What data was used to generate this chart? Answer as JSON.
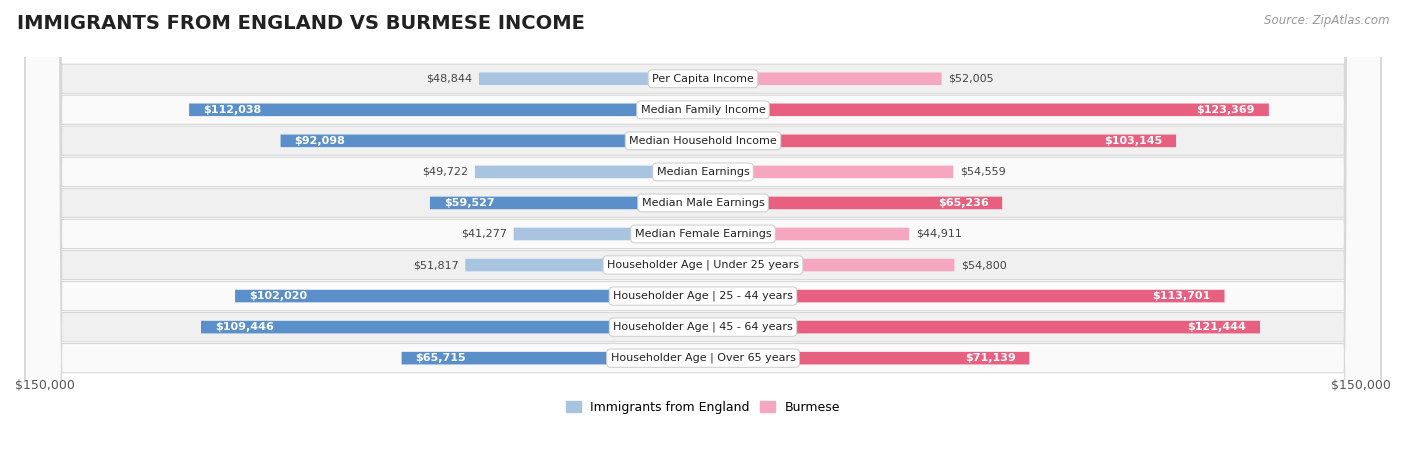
{
  "title": "Immigrants from England vs Burmese Income",
  "source": "Source: ZipAtlas.com",
  "categories": [
    "Per Capita Income",
    "Median Family Income",
    "Median Household Income",
    "Median Earnings",
    "Median Male Earnings",
    "Median Female Earnings",
    "Householder Age | Under 25 years",
    "Householder Age | 25 - 44 years",
    "Householder Age | 45 - 64 years",
    "Householder Age | Over 65 years"
  ],
  "england_values": [
    48844,
    112038,
    92098,
    49722,
    59527,
    41277,
    51817,
    102020,
    109446,
    65715
  ],
  "burmese_values": [
    52005,
    123369,
    103145,
    54559,
    65236,
    44911,
    54800,
    113701,
    121444,
    71139
  ],
  "england_labels": [
    "$48,844",
    "$112,038",
    "$92,098",
    "$49,722",
    "$59,527",
    "$41,277",
    "$51,817",
    "$102,020",
    "$109,446",
    "$65,715"
  ],
  "burmese_labels": [
    "$52,005",
    "$123,369",
    "$103,145",
    "$54,559",
    "$65,236",
    "$44,911",
    "$54,800",
    "$113,701",
    "$121,444",
    "$71,139"
  ],
  "max_value": 150000,
  "england_color_light": "#a8c4e0",
  "england_color_dark": "#5b8fc9",
  "burmese_color_light": "#f4a7bf",
  "burmese_color_dark": "#e8607f",
  "inside_label_threshold": 55000,
  "bar_height": 0.52,
  "background_color": "#ffffff",
  "row_bg_color_odd": "#f0f0f0",
  "row_bg_color_even": "#fafafa",
  "row_border_color": "#d8d8d8",
  "legend_england": "Immigrants from England",
  "legend_burmese": "Burmese",
  "xlabel_left": "$150,000",
  "xlabel_right": "$150,000",
  "title_fontsize": 14,
  "label_fontsize": 8,
  "cat_fontsize": 8
}
